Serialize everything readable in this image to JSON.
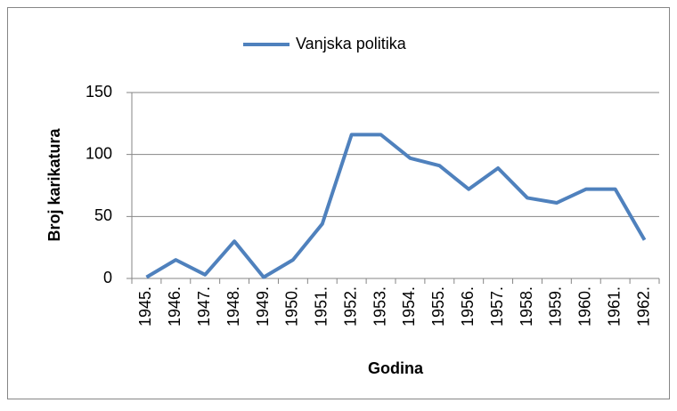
{
  "chart_data": {
    "type": "line",
    "x_label": "Godina",
    "y_label": "Broj karikatura",
    "categories": [
      "1945.",
      "1946.",
      "1947.",
      "1948.",
      "1949.",
      "1950.",
      "1951.",
      "1952.",
      "1953.",
      "1954.",
      "1955.",
      "1956.",
      "1957.",
      "1958.",
      "1959.",
      "1960.",
      "1961.",
      "1962."
    ],
    "series": [
      {
        "name": "Vanjska politika",
        "color": "#4f81bd",
        "values": [
          1,
          15,
          3,
          30,
          1,
          15,
          44,
          116,
          116,
          97,
          91,
          72,
          89,
          65,
          61,
          72,
          72,
          31
        ]
      }
    ],
    "ylim": [
      0,
      150
    ],
    "yticks": [
      0,
      50,
      100,
      150
    ],
    "grid": true,
    "legend": "top"
  }
}
